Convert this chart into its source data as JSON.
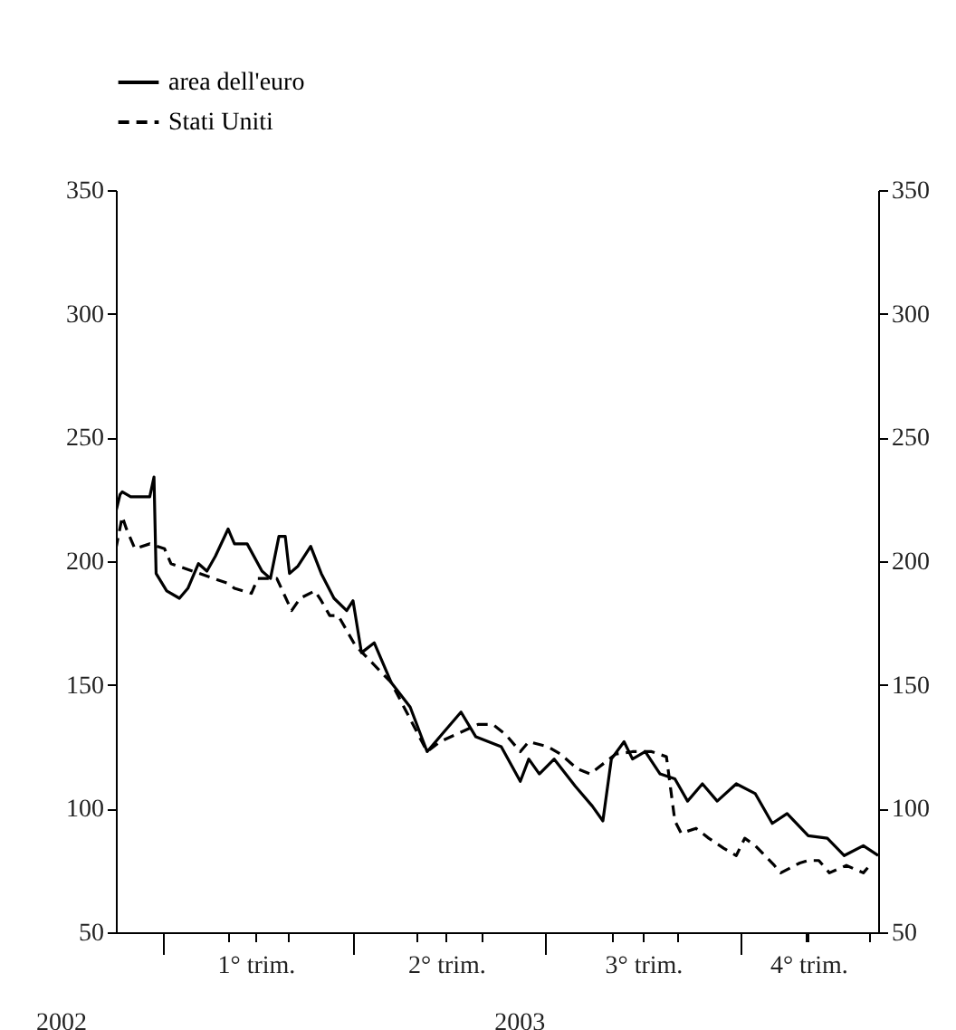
{
  "chart_data": {
    "type": "line",
    "xlim": [
      "2002-12-10",
      "2003-12-05"
    ],
    "xticks": [
      {
        "value": "2003-01-01",
        "label": null
      },
      {
        "value": "2003-02-01",
        "label": null
      },
      {
        "value": "2003-03-01",
        "label": null
      },
      {
        "value": "2003-04-01",
        "label": null
      },
      {
        "value": "2003-05-01",
        "label": null
      },
      {
        "value": "2003-06-01",
        "label": null
      },
      {
        "value": "2003-07-01",
        "label": null
      },
      {
        "value": "2003-08-01",
        "label": null
      },
      {
        "value": "2003-09-01",
        "label": null
      },
      {
        "value": "2003-10-01",
        "label": null
      },
      {
        "value": "2003-11-01",
        "label": null
      },
      {
        "value": "2003-12-01",
        "label": null
      },
      {
        "value": "2003-02-14",
        "label": "1° trim."
      },
      {
        "value": "2003-05-15",
        "label": "2° trim."
      },
      {
        "value": "2003-08-16",
        "label": "3° trim."
      },
      {
        "value": "2003-11-02",
        "label": "4° trim."
      }
    ],
    "ylim": [
      50,
      350
    ],
    "yticks": [
      50,
      100,
      150,
      200,
      250,
      300,
      350
    ],
    "y2lim": [
      50,
      350
    ],
    "y2ticks": [
      50,
      100,
      150,
      200,
      250,
      300,
      350
    ],
    "grid": false,
    "legend": "top",
    "marker": "none",
    "annotations": [
      "2002",
      "2003"
    ],
    "series": [
      {
        "name": "area dell'euro",
        "color": "#000000",
        "line_style": "solid",
        "x": [
          "2002-12-10",
          "2002-12-12",
          "2002-12-13",
          "2002-12-17",
          "2002-12-26",
          "2002-12-28",
          "2002-12-29",
          "2003-01-03",
          "2003-01-09",
          "2003-01-13",
          "2003-01-18",
          "2003-01-22",
          "2003-01-26",
          "2003-02-01",
          "2003-02-04",
          "2003-02-10",
          "2003-02-17",
          "2003-02-21",
          "2003-02-25",
          "2003-02-28",
          "2003-03-02",
          "2003-03-06",
          "2003-03-12",
          "2003-03-17",
          "2003-03-23",
          "2003-03-29",
          "2003-04-01",
          "2003-04-05",
          "2003-04-11",
          "2003-04-19",
          "2003-04-28",
          "2003-05-06",
          "2003-05-13",
          "2003-05-22",
          "2003-05-29",
          "2003-06-10",
          "2003-06-19",
          "2003-06-23",
          "2003-06-28",
          "2003-07-05",
          "2003-07-15",
          "2003-07-23",
          "2003-07-28",
          "2003-08-01",
          "2003-08-07",
          "2003-08-11",
          "2003-08-17",
          "2003-08-24",
          "2003-08-31",
          "2003-09-06",
          "2003-09-13",
          "2003-09-20",
          "2003-09-29",
          "2003-10-08",
          "2003-10-16",
          "2003-10-23",
          "2003-11-02",
          "2003-11-11",
          "2003-11-19",
          "2003-11-28",
          "2003-12-05"
        ],
        "values": [
          220,
          227,
          228,
          226,
          226,
          234,
          195,
          188,
          185,
          189,
          199,
          196,
          202,
          213,
          207,
          207,
          196,
          193,
          210,
          210,
          195,
          198,
          206,
          195,
          185,
          180,
          184,
          163,
          167,
          151,
          141,
          123,
          130,
          139,
          129,
          125,
          111,
          120,
          114,
          120,
          109,
          101,
          95,
          120,
          127,
          120,
          123,
          114,
          112,
          103,
          110,
          103,
          110,
          106,
          94,
          98,
          89,
          88,
          81,
          85,
          81
        ]
      },
      {
        "name": "Stati Uniti",
        "color": "#000000",
        "line_style": "dashed",
        "x": [
          "2002-12-10",
          "2002-12-13",
          "2002-12-15",
          "2002-12-19",
          "2002-12-26",
          "2003-01-02",
          "2003-01-05",
          "2003-02-01",
          "2003-02-04",
          "2003-02-12",
          "2003-02-15",
          "2003-02-24",
          "2003-03-03",
          "2003-03-07",
          "2003-03-14",
          "2003-03-17",
          "2003-03-21",
          "2003-03-25",
          "2003-04-02",
          "2003-04-19",
          "2003-05-06",
          "2003-05-12",
          "2003-05-30",
          "2003-06-06",
          "2003-06-12",
          "2003-06-19",
          "2003-06-23",
          "2003-07-02",
          "2003-07-08",
          "2003-07-16",
          "2003-07-22",
          "2003-08-03",
          "2003-08-11",
          "2003-08-20",
          "2003-08-27",
          "2003-08-31",
          "2003-09-03",
          "2003-09-10",
          "2003-09-16",
          "2003-09-23",
          "2003-09-29",
          "2003-10-03",
          "2003-10-08",
          "2003-10-17",
          "2003-10-20",
          "2003-10-29",
          "2003-11-02",
          "2003-11-07",
          "2003-11-12",
          "2003-11-20",
          "2003-11-28",
          "2003-12-02"
        ],
        "values": [
          205,
          218,
          213,
          205,
          207,
          205,
          199,
          191,
          189,
          187,
          193,
          193,
          180,
          185,
          188,
          184,
          178,
          178,
          166,
          151,
          123,
          127,
          134,
          134,
          130,
          123,
          127,
          125,
          122,
          116,
          114,
          122,
          123,
          123,
          121,
          95,
          90,
          92,
          88,
          84,
          81,
          88,
          85,
          77,
          74,
          78,
          79,
          79,
          74,
          77,
          74,
          78
        ]
      }
    ]
  }
}
